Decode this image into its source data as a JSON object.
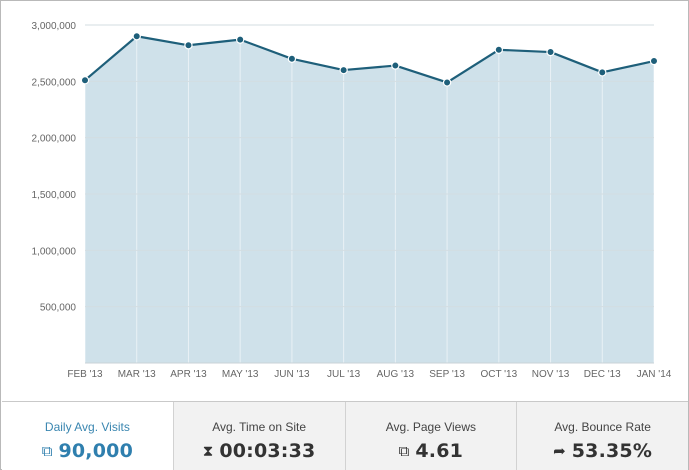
{
  "chart_data": {
    "type": "area",
    "categories": [
      "FEB '13",
      "MAR '13",
      "APR '13",
      "MAY '13",
      "JUN '13",
      "JUL '13",
      "AUG '13",
      "SEP '13",
      "OCT '13",
      "NOV '13",
      "DEC '13",
      "JAN '14"
    ],
    "values": [
      2510000,
      2900000,
      2820000,
      2870000,
      2700000,
      2600000,
      2640000,
      2490000,
      2780000,
      2760000,
      2580000,
      2680000
    ],
    "y_ticks": [
      500000,
      1000000,
      1500000,
      2000000,
      2500000,
      3000000
    ],
    "y_tick_labels": [
      "500,000",
      "1,000,000",
      "1,500,000",
      "2,000,000",
      "2,500,000",
      "3,000,000"
    ],
    "ylim": [
      0,
      3000000
    ],
    "title": "",
    "xlabel": "",
    "ylabel": "",
    "grid": true,
    "colors": {
      "line": "#1e5f7a",
      "fill": "#cfe1ea",
      "grid": "#d3dde2",
      "marker_edge": "#ffffff"
    }
  },
  "stats": [
    {
      "label": "Daily Avg. Visits",
      "value": "90,000",
      "icon": "copy-icon",
      "glyph": "⧉"
    },
    {
      "label": "Avg. Time on Site",
      "value": "00:03:33",
      "icon": "hourglass-icon",
      "glyph": "⧗"
    },
    {
      "label": "Avg. Page Views",
      "value": "4.61",
      "icon": "copy-icon",
      "glyph": "⧉"
    },
    {
      "label": "Avg. Bounce Rate",
      "value": "53.35%",
      "icon": "bounce-arrow-icon",
      "glyph": "➦"
    }
  ]
}
